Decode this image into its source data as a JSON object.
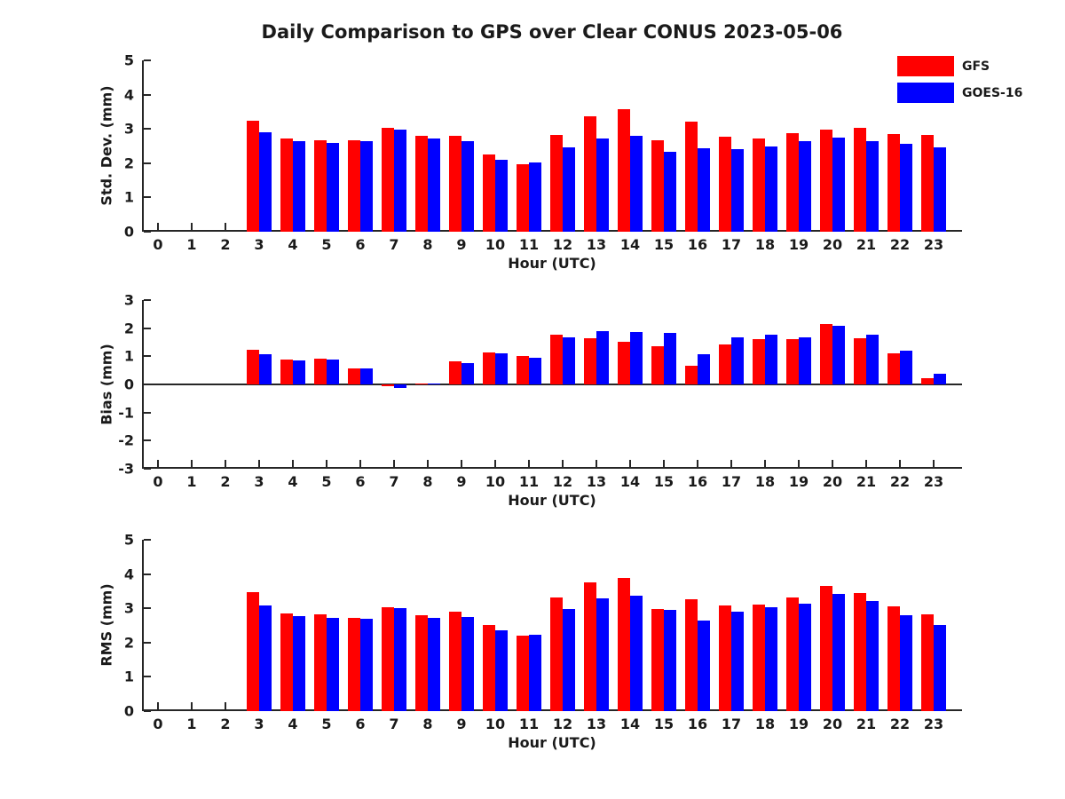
{
  "title": "Daily Comparison to GPS over Clear CONUS 2023-05-06",
  "legend": {
    "entries": [
      {
        "label": "GFS",
        "color": "#ff0000"
      },
      {
        "label": "GOES-16",
        "color": "#0000ff"
      }
    ]
  },
  "chart_data": [
    {
      "type": "bar",
      "title": "",
      "xlabel": "Hour (UTC)",
      "ylabel": "Std. Dev. (mm)",
      "ylim": [
        0,
        5
      ],
      "yticks": [
        0,
        1,
        2,
        3,
        4,
        5
      ],
      "grid": false,
      "legend_position": "upper-right-outside",
      "categories": [
        "0",
        "1",
        "2",
        "3",
        "4",
        "5",
        "6",
        "7",
        "8",
        "9",
        "10",
        "11",
        "12",
        "13",
        "14",
        "15",
        "16",
        "17",
        "18",
        "19",
        "20",
        "21",
        "22",
        "23"
      ],
      "series": [
        {
          "name": "GFS",
          "color": "#ff0000",
          "values": [
            null,
            null,
            null,
            3.25,
            2.71,
            2.68,
            2.68,
            3.04,
            2.81,
            2.81,
            2.25,
            1.97,
            2.82,
            3.38,
            3.57,
            2.66,
            3.21,
            2.77,
            2.72,
            2.88,
            2.97,
            3.02,
            2.85,
            2.82
          ]
        },
        {
          "name": "GOES-16",
          "color": "#0000ff",
          "values": [
            null,
            null,
            null,
            2.9,
            2.64,
            2.58,
            2.64,
            2.99,
            2.71,
            2.64,
            2.1,
            2.01,
            2.46,
            2.71,
            2.81,
            2.32,
            2.43,
            2.42,
            2.48,
            2.64,
            2.74,
            2.65,
            2.57,
            2.47
          ]
        }
      ]
    },
    {
      "type": "bar",
      "title": "",
      "xlabel": "Hour (UTC)",
      "ylabel": "Bias (mm)",
      "ylim": [
        -3,
        3
      ],
      "yticks": [
        -3,
        -2,
        -1,
        0,
        1,
        2,
        3
      ],
      "zero_line": true,
      "grid": false,
      "categories": [
        "0",
        "1",
        "2",
        "3",
        "4",
        "5",
        "6",
        "7",
        "8",
        "9",
        "10",
        "11",
        "12",
        "13",
        "14",
        "15",
        "16",
        "17",
        "18",
        "19",
        "20",
        "21",
        "22",
        "23"
      ],
      "series": [
        {
          "name": "GFS",
          "color": "#ff0000",
          "values": [
            null,
            null,
            null,
            1.24,
            0.9,
            0.91,
            0.57,
            -0.05,
            0.03,
            0.81,
            1.15,
            1.01,
            1.78,
            1.65,
            1.53,
            1.35,
            0.65,
            1.41,
            1.62,
            1.62,
            2.14,
            1.64,
            1.12,
            0.22
          ]
        },
        {
          "name": "GOES-16",
          "color": "#0000ff",
          "values": [
            null,
            null,
            null,
            1.06,
            0.84,
            0.87,
            0.57,
            -0.12,
            0.03,
            0.77,
            1.12,
            0.95,
            1.68,
            1.88,
            1.85,
            1.82,
            1.06,
            1.66,
            1.78,
            1.67,
            2.07,
            1.77,
            1.2,
            0.38
          ]
        }
      ]
    },
    {
      "type": "bar",
      "title": "",
      "xlabel": "Hour (UTC)",
      "ylabel": "RMS (mm)",
      "ylim": [
        0,
        5
      ],
      "yticks": [
        0,
        1,
        2,
        3,
        4,
        5
      ],
      "grid": false,
      "categories": [
        "0",
        "1",
        "2",
        "3",
        "4",
        "5",
        "6",
        "7",
        "8",
        "9",
        "10",
        "11",
        "12",
        "13",
        "14",
        "15",
        "16",
        "17",
        "18",
        "19",
        "20",
        "21",
        "22",
        "23"
      ],
      "series": [
        {
          "name": "GFS",
          "color": "#ff0000",
          "values": [
            null,
            null,
            null,
            3.47,
            2.85,
            2.82,
            2.72,
            3.02,
            2.8,
            2.9,
            2.51,
            2.2,
            3.32,
            3.76,
            3.89,
            2.97,
            3.26,
            3.09,
            3.12,
            3.31,
            3.65,
            3.45,
            3.05,
            2.83
          ]
        },
        {
          "name": "GOES-16",
          "color": "#0000ff",
          "values": [
            null,
            null,
            null,
            3.07,
            2.76,
            2.72,
            2.7,
            3.0,
            2.72,
            2.75,
            2.37,
            2.24,
            2.98,
            3.3,
            3.38,
            2.95,
            2.65,
            2.91,
            3.03,
            3.13,
            3.41,
            3.2,
            2.8,
            2.52
          ]
        }
      ]
    }
  ]
}
